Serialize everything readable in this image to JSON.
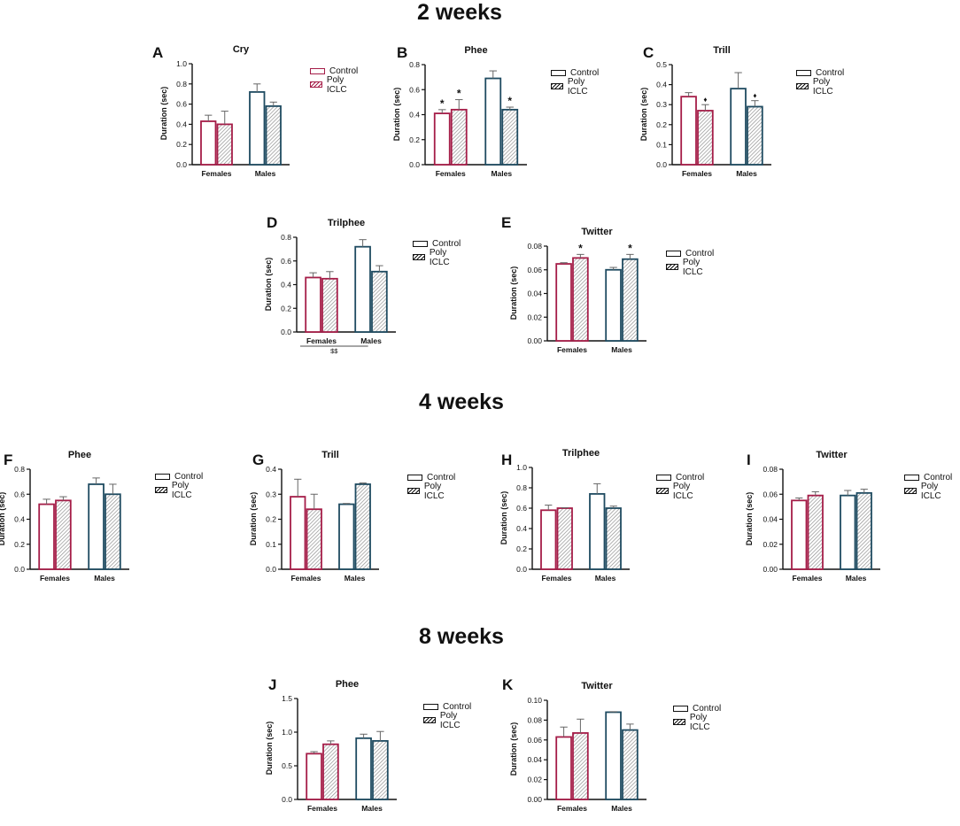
{
  "colors": {
    "female": "#a51d48",
    "male": "#1f4b61",
    "axis": "#111111"
  },
  "sections": [
    {
      "id": "s2",
      "title": "2 weeks"
    },
    {
      "id": "s4",
      "title": "4 weeks"
    },
    {
      "id": "s8",
      "title": "8 weeks"
    }
  ],
  "legend": {
    "control": "Control",
    "poly": "Poly ICLC"
  },
  "chart_data": [
    {
      "id": "A",
      "letter": "A",
      "title": "Cry",
      "type": "bar",
      "ylabel": "Duration (sec)",
      "categories": [
        "Females",
        "Males"
      ],
      "ylim": [
        0,
        1.0
      ],
      "yticks": [
        "0.0",
        "0.2",
        "0.4",
        "0.6",
        "0.8",
        "1.0"
      ],
      "series": [
        {
          "name": "Control",
          "values": [
            0.43,
            0.72
          ],
          "errors": [
            0.06,
            0.08
          ]
        },
        {
          "name": "Poly ICLC",
          "values": [
            0.4,
            0.58
          ],
          "errors": [
            0.13,
            0.04
          ]
        }
      ],
      "markers": [],
      "note": ""
    },
    {
      "id": "B",
      "letter": "B",
      "title": "Phee",
      "type": "bar",
      "ylabel": "Duration (sec)",
      "categories": [
        "Females",
        "Males"
      ],
      "ylim": [
        0,
        0.8
      ],
      "yticks": [
        "0.0",
        "0.2",
        "0.4",
        "0.6",
        "0.8"
      ],
      "series": [
        {
          "name": "Control",
          "values": [
            0.41,
            0.69
          ],
          "errors": [
            0.03,
            0.06
          ]
        },
        {
          "name": "Poly ICLC",
          "values": [
            0.44,
            0.44
          ],
          "errors": [
            0.08,
            0.02
          ]
        }
      ],
      "markers": [
        {
          "cat": 0,
          "series": 0,
          "text": "*"
        },
        {
          "cat": 0,
          "series": 1,
          "text": "*"
        },
        {
          "cat": 1,
          "series": 1,
          "text": "*"
        }
      ],
      "note": ""
    },
    {
      "id": "C",
      "letter": "C",
      "title": "Trill",
      "type": "bar",
      "ylabel": "Duration (sec)",
      "categories": [
        "Females",
        "Males"
      ],
      "ylim": [
        0,
        0.5
      ],
      "yticks": [
        "0.0",
        "0.1",
        "0.2",
        "0.3",
        "0.4",
        "0.5"
      ],
      "series": [
        {
          "name": "Control",
          "values": [
            0.34,
            0.38
          ],
          "errors": [
            0.02,
            0.08
          ]
        },
        {
          "name": "Poly ICLC",
          "values": [
            0.27,
            0.29
          ],
          "errors": [
            0.03,
            0.03
          ]
        }
      ],
      "markers": [
        {
          "cat": 0,
          "series": 1,
          "text": "♦"
        },
        {
          "cat": 1,
          "series": 1,
          "text": "♦"
        }
      ],
      "note": ""
    },
    {
      "id": "D",
      "letter": "D",
      "title": "Trilphee",
      "type": "bar",
      "ylabel": "Duration (sec)",
      "categories": [
        "Females",
        "Males"
      ],
      "ylim": [
        0,
        0.8
      ],
      "yticks": [
        "0.0",
        "0.2",
        "0.4",
        "0.6",
        "0.8"
      ],
      "series": [
        {
          "name": "Control",
          "values": [
            0.46,
            0.72
          ],
          "errors": [
            0.04,
            0.06
          ]
        },
        {
          "name": "Poly ICLC",
          "values": [
            0.45,
            0.51
          ],
          "errors": [
            0.06,
            0.05
          ]
        }
      ],
      "markers": [],
      "note": "$$"
    },
    {
      "id": "E",
      "letter": "E",
      "title": "Twitter",
      "type": "bar",
      "ylabel": "Duration (sec)",
      "categories": [
        "Females",
        "Males"
      ],
      "ylim": [
        0,
        0.08
      ],
      "yticks": [
        "0.00",
        "0.02",
        "0.04",
        "0.06",
        "0.08"
      ],
      "series": [
        {
          "name": "Control",
          "values": [
            0.065,
            0.06
          ],
          "errors": [
            0.001,
            0.002
          ]
        },
        {
          "name": "Poly ICLC",
          "values": [
            0.07,
            0.069
          ],
          "errors": [
            0.003,
            0.004
          ]
        }
      ],
      "markers": [
        {
          "cat": 0,
          "series": 1,
          "text": "*"
        },
        {
          "cat": 1,
          "series": 1,
          "text": "*"
        }
      ],
      "note": ""
    },
    {
      "id": "F",
      "letter": "F",
      "title": "Phee",
      "type": "bar",
      "ylabel": "Duration (sec)",
      "categories": [
        "Females",
        "Males"
      ],
      "ylim": [
        0,
        0.8
      ],
      "yticks": [
        "0.0",
        "0.2",
        "0.4",
        "0.6",
        "0.8"
      ],
      "series": [
        {
          "name": "Control",
          "values": [
            0.52,
            0.68
          ],
          "errors": [
            0.04,
            0.05
          ]
        },
        {
          "name": "Poly ICLC",
          "values": [
            0.55,
            0.6
          ],
          "errors": [
            0.03,
            0.08
          ]
        }
      ],
      "markers": [],
      "note": ""
    },
    {
      "id": "G",
      "letter": "G",
      "title": "Trill",
      "type": "bar",
      "ylabel": "Duration (sec)",
      "categories": [
        "Females",
        "Males"
      ],
      "ylim": [
        0,
        0.4
      ],
      "yticks": [
        "0.0",
        "0.1",
        "0.2",
        "0.3",
        "0.4"
      ],
      "series": [
        {
          "name": "Control",
          "values": [
            0.29,
            0.26
          ],
          "errors": [
            0.07,
            0.003
          ]
        },
        {
          "name": "Poly ICLC",
          "values": [
            0.24,
            0.34
          ],
          "errors": [
            0.06,
            0.005
          ]
        }
      ],
      "markers": [],
      "note": ""
    },
    {
      "id": "H",
      "letter": "H",
      "title": "Trilphee",
      "type": "bar",
      "ylabel": "Duration (sec)",
      "categories": [
        "Females",
        "Males"
      ],
      "ylim": [
        0,
        1.0
      ],
      "yticks": [
        "0.0",
        "0.2",
        "0.4",
        "0.6",
        "0.8",
        "1.0"
      ],
      "series": [
        {
          "name": "Control",
          "values": [
            0.58,
            0.74
          ],
          "errors": [
            0.05,
            0.1
          ]
        },
        {
          "name": "Poly ICLC",
          "values": [
            0.6,
            0.6
          ],
          "errors": [
            0.005,
            0.02
          ]
        }
      ],
      "markers": [],
      "note": ""
    },
    {
      "id": "I",
      "letter": "I",
      "title": "Twitter",
      "type": "bar",
      "ylabel": "Duration (sec)",
      "categories": [
        "Females",
        "Males"
      ],
      "ylim": [
        0,
        0.08
      ],
      "yticks": [
        "0.00",
        "0.02",
        "0.04",
        "0.06",
        "0.08"
      ],
      "series": [
        {
          "name": "Control",
          "values": [
            0.055,
            0.059
          ],
          "errors": [
            0.002,
            0.004
          ]
        },
        {
          "name": "Poly ICLC",
          "values": [
            0.059,
            0.061
          ],
          "errors": [
            0.003,
            0.003
          ]
        }
      ],
      "markers": [],
      "note": ""
    },
    {
      "id": "J",
      "letter": "J",
      "title": "Phee",
      "type": "bar",
      "ylabel": "Duration (sec)",
      "categories": [
        "Females",
        "Males"
      ],
      "ylim": [
        0,
        1.5
      ],
      "yticks": [
        "0.0",
        "0.5",
        "1.0",
        "1.5"
      ],
      "series": [
        {
          "name": "Control",
          "values": [
            0.68,
            0.91
          ],
          "errors": [
            0.03,
            0.06
          ]
        },
        {
          "name": "Poly ICLC",
          "values": [
            0.82,
            0.87
          ],
          "errors": [
            0.05,
            0.14
          ]
        }
      ],
      "markers": [],
      "note": ""
    },
    {
      "id": "K",
      "letter": "K",
      "title": "Twitter",
      "type": "bar",
      "ylabel": "Duration (sec)",
      "categories": [
        "Females",
        "Males"
      ],
      "ylim": [
        0,
        0.1
      ],
      "yticks": [
        "0.00",
        "0.02",
        "0.04",
        "0.06",
        "0.08",
        "0.10"
      ],
      "series": [
        {
          "name": "Control",
          "values": [
            0.063,
            0.088
          ],
          "errors": [
            0.01,
            0.0005
          ]
        },
        {
          "name": "Poly ICLC",
          "values": [
            0.067,
            0.07
          ],
          "errors": [
            0.014,
            0.006
          ]
        }
      ],
      "markers": [],
      "note": ""
    }
  ]
}
